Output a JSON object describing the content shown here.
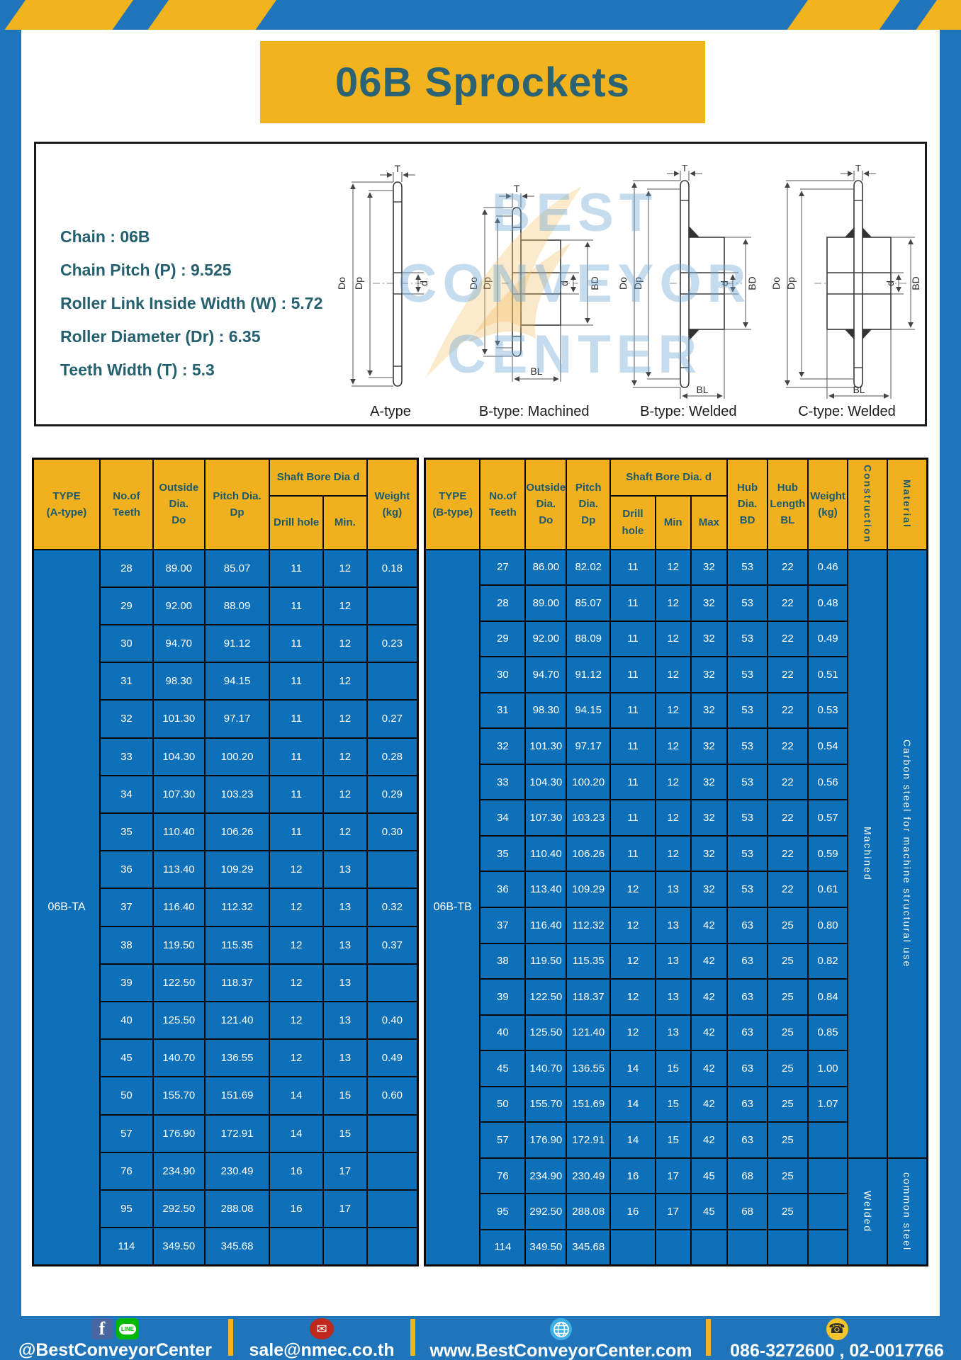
{
  "page": {
    "title": "06B Sprockets"
  },
  "specs": {
    "lines": [
      "Chain  :  06B",
      "Chain Pitch (P)  :  9.525",
      "Roller Link Inside Width (W)  :  5.72",
      "Roller Diameter (Dr)  : 6.35",
      "Teeth Width (T)  :  5.3"
    ]
  },
  "diagrams": {
    "watermark_lines": [
      "BEST",
      "CONVEYOR",
      "CENTER"
    ],
    "captions": [
      "A-type",
      "B-type: Machined",
      "B-type: Welded",
      "C-type: Welded"
    ],
    "dims": {
      "do": "Do",
      "dp": "Dp",
      "d": "d",
      "t": "T",
      "bd": "BD",
      "bl": "BL"
    }
  },
  "tables": {
    "left": {
      "type_label": "06B-TA",
      "headers": {
        "type": "TYPE\n(A-type)",
        "teeth": "No.of\nTeeth",
        "outside": "Outside\nDia.\nDo",
        "pitch": "Pitch Dia.\nDp",
        "shaft_bore": "Shaft Bore Dia d",
        "drill": "Drill hole",
        "min": "Min.",
        "weight": "Weight\n(kg)"
      },
      "rows": [
        [
          "28",
          "89.00",
          "85.07",
          "11",
          "12",
          "0.18"
        ],
        [
          "29",
          "92.00",
          "88.09",
          "11",
          "12",
          ""
        ],
        [
          "30",
          "94.70",
          "91.12",
          "11",
          "12",
          "0.23"
        ],
        [
          "31",
          "98.30",
          "94.15",
          "11",
          "12",
          ""
        ],
        [
          "32",
          "101.30",
          "97.17",
          "11",
          "12",
          "0.27"
        ],
        [
          "33",
          "104.30",
          "100.20",
          "11",
          "12",
          "0.28"
        ],
        [
          "34",
          "107.30",
          "103.23",
          "11",
          "12",
          "0.29"
        ],
        [
          "35",
          "110.40",
          "106.26",
          "11",
          "12",
          "0.30"
        ],
        [
          "36",
          "113.40",
          "109.29",
          "12",
          "13",
          ""
        ],
        [
          "37",
          "116.40",
          "112.32",
          "12",
          "13",
          "0.32"
        ],
        [
          "38",
          "119.50",
          "115.35",
          "12",
          "13",
          "0.37"
        ],
        [
          "39",
          "122.50",
          "118.37",
          "12",
          "13",
          ""
        ],
        [
          "40",
          "125.50",
          "121.40",
          "12",
          "13",
          "0.40"
        ],
        [
          "45",
          "140.70",
          "136.55",
          "12",
          "13",
          "0.49"
        ],
        [
          "50",
          "155.70",
          "151.69",
          "14",
          "15",
          "0.60"
        ],
        [
          "57",
          "176.90",
          "172.91",
          "14",
          "15",
          ""
        ],
        [
          "76",
          "234.90",
          "230.49",
          "16",
          "17",
          ""
        ],
        [
          "95",
          "292.50",
          "288.08",
          "16",
          "17",
          ""
        ],
        [
          "114",
          "349.50",
          "345.68",
          "",
          "",
          ""
        ]
      ]
    },
    "right": {
      "type_label": "06B-TB",
      "headers": {
        "type": "TYPE\n(B-type)",
        "teeth": "No.of\nTeeth",
        "outside": "Outside\nDia.\nDo",
        "pitch": "Pitch\nDia.\nDp",
        "shaft_bore": "Shaft Bore Dia. d",
        "drill": "Drill hole",
        "min": "Min",
        "max": "Max",
        "hub_dia": "Hub\nDia.\nBD",
        "hub_len": "Hub\nLength\nBL",
        "weight": "Weight\n(kg)",
        "construction": "Construction",
        "material": "Material"
      },
      "rows": [
        [
          "27",
          "86.00",
          "82.02",
          "11",
          "12",
          "32",
          "53",
          "22",
          "0.46"
        ],
        [
          "28",
          "89.00",
          "85.07",
          "11",
          "12",
          "32",
          "53",
          "22",
          "0.48"
        ],
        [
          "29",
          "92.00",
          "88.09",
          "11",
          "12",
          "32",
          "53",
          "22",
          "0.49"
        ],
        [
          "30",
          "94.70",
          "91.12",
          "11",
          "12",
          "32",
          "53",
          "22",
          "0.51"
        ],
        [
          "31",
          "98.30",
          "94.15",
          "11",
          "12",
          "32",
          "53",
          "22",
          "0.53"
        ],
        [
          "32",
          "101.30",
          "97.17",
          "11",
          "12",
          "32",
          "53",
          "22",
          "0.54"
        ],
        [
          "33",
          "104.30",
          "100.20",
          "11",
          "12",
          "32",
          "53",
          "22",
          "0.56"
        ],
        [
          "34",
          "107.30",
          "103.23",
          "11",
          "12",
          "32",
          "53",
          "22",
          "0.57"
        ],
        [
          "35",
          "110.40",
          "106.26",
          "11",
          "12",
          "32",
          "53",
          "22",
          "0.59"
        ],
        [
          "36",
          "113.40",
          "109.29",
          "12",
          "13",
          "32",
          "53",
          "22",
          "0.61"
        ],
        [
          "37",
          "116.40",
          "112.32",
          "12",
          "13",
          "42",
          "63",
          "25",
          "0.80"
        ],
        [
          "38",
          "119.50",
          "115.35",
          "12",
          "13",
          "42",
          "63",
          "25",
          "0.82"
        ],
        [
          "39",
          "122.50",
          "118.37",
          "12",
          "13",
          "42",
          "63",
          "25",
          "0.84"
        ],
        [
          "40",
          "125.50",
          "121.40",
          "12",
          "13",
          "42",
          "63",
          "25",
          "0.85"
        ],
        [
          "45",
          "140.70",
          "136.55",
          "14",
          "15",
          "42",
          "63",
          "25",
          "1.00"
        ],
        [
          "50",
          "155.70",
          "151.69",
          "14",
          "15",
          "42",
          "63",
          "25",
          "1.07"
        ],
        [
          "57",
          "176.90",
          "172.91",
          "14",
          "15",
          "42",
          "63",
          "25",
          ""
        ],
        [
          "76",
          "234.90",
          "230.49",
          "16",
          "17",
          "45",
          "68",
          "25",
          ""
        ],
        [
          "95",
          "292.50",
          "288.08",
          "16",
          "17",
          "45",
          "68",
          "25",
          ""
        ],
        [
          "114",
          "349.50",
          "345.68",
          "",
          "",
          "",
          "",
          "",
          ""
        ]
      ],
      "construction_groups": [
        {
          "label": "Machined",
          "span": 17
        },
        {
          "label": "Welded",
          "span": 3
        }
      ],
      "material_groups": [
        {
          "label": "Carbon steel for machine structural use",
          "span": 17
        },
        {
          "label": "common steel",
          "span": 3
        }
      ]
    }
  },
  "footer": {
    "line_icon_text": "LINE",
    "social": "@BestConveyorCenter",
    "email": "sale@nmec.co.th",
    "website": "www.BestConveyorCenter.com",
    "phone": "086-3272600 , 02-0017766"
  },
  "colors": {
    "frame_blue": "#1F74BA",
    "cell_blue": "#0E70B8",
    "accent_yellow": "#F2B41E",
    "teal_text": "#1B5A6E",
    "line_green": "#00B900",
    "facebook_blue": "#4A66A0",
    "email_red": "#C0281E",
    "globe_blue": "#3FB0E4",
    "phone_yellow": "#F5C32C"
  }
}
